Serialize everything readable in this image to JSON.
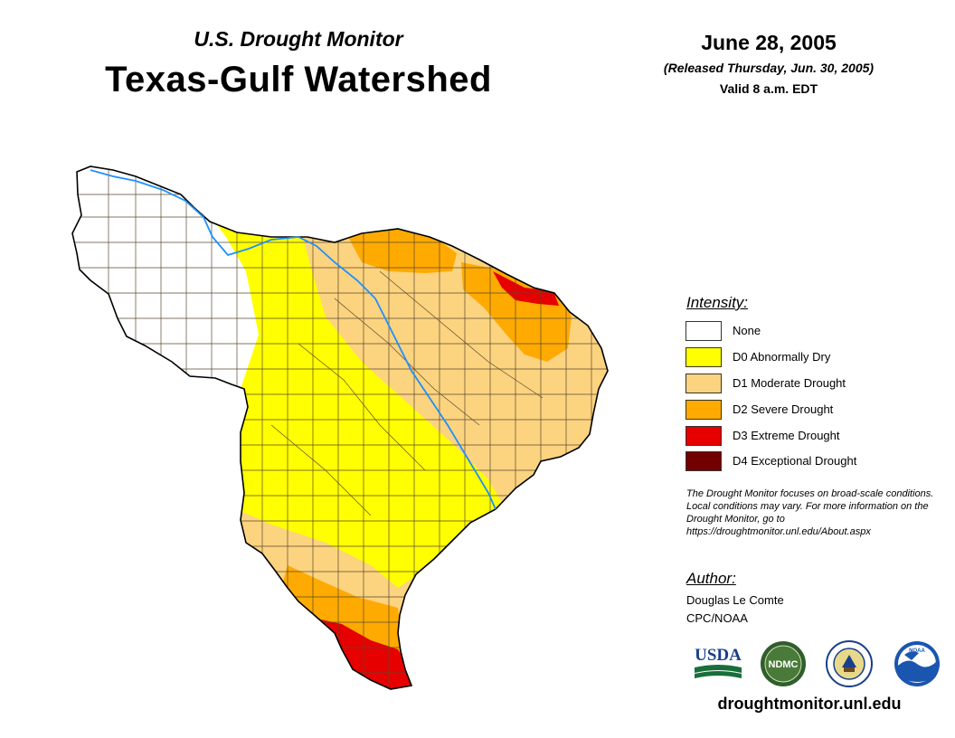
{
  "header": {
    "subtitle": "U.S. Drought Monitor",
    "title": "Texas-Gulf Watershed",
    "date": "June 28, 2005",
    "released": "(Released Thursday, Jun. 30, 2005)",
    "valid": "Valid 8 a.m. EDT"
  },
  "legend": {
    "title": "Intensity:",
    "items": [
      {
        "label": "None",
        "color": "#ffffff"
      },
      {
        "label": "D0 Abnormally Dry",
        "color": "#ffff00"
      },
      {
        "label": "D1 Moderate Drought",
        "color": "#fcd37f"
      },
      {
        "label": "D2 Severe Drought",
        "color": "#ffaa00"
      },
      {
        "label": "D3 Extreme Drought",
        "color": "#e60000"
      },
      {
        "label": "D4 Exceptional Drought",
        "color": "#730000"
      }
    ]
  },
  "note": "The Drought Monitor focuses on broad-scale conditions. Local conditions may vary. For more information on the Drought Monitor, go to https://droughtmonitor.unl.edu/About.aspx",
  "author": {
    "title": "Author:",
    "name": "Douglas Le Comte",
    "org": "CPC/NOAA"
  },
  "logos": {
    "usda": "USDA",
    "ndmc": "NDMC",
    "noaa": "NOAA"
  },
  "website": "droughtmonitor.unl.edu",
  "map": {
    "water_color": "#1e90ff",
    "border_color": "#000000",
    "county_line_color": "#5a4a30"
  }
}
